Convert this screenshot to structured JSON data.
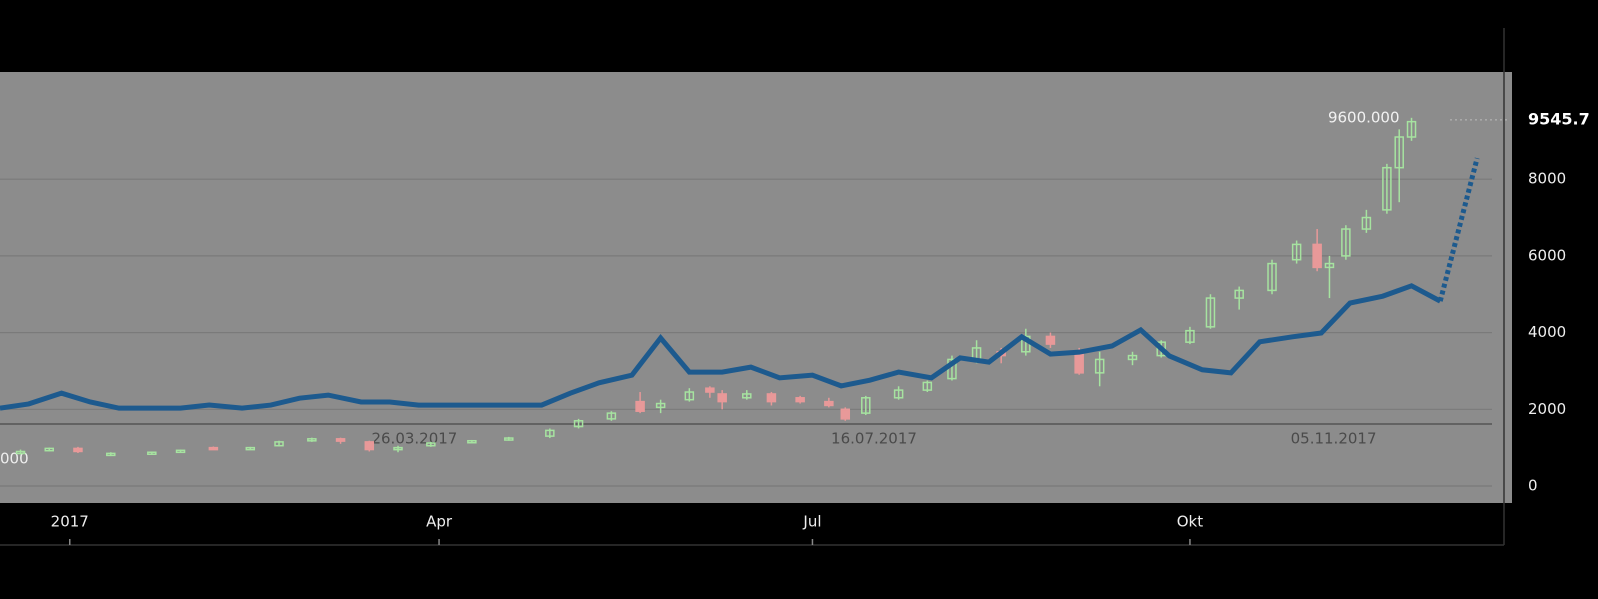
{
  "chart_data": {
    "type": "candlestick",
    "xlim": [
      -17,
      351
    ],
    "xticks": [
      {
        "value": 0,
        "label": "2017"
      },
      {
        "value": 90,
        "label": "Apr"
      },
      {
        "value": 181,
        "label": "Jul"
      },
      {
        "value": 273,
        "label": "Okt"
      }
    ],
    "ylim": [
      -235,
      10795
    ],
    "yticks": [
      0,
      2000,
      4000,
      6000,
      8000
    ],
    "grid": true,
    "candles": {
      "up_color": "#a6e3a0",
      "down_color": "#e89999",
      "x": [
        -12,
        -5,
        2,
        10,
        20,
        27,
        35,
        44,
        51,
        59,
        66,
        73,
        80,
        88,
        98,
        107,
        117,
        124,
        132,
        139,
        144,
        151,
        156,
        159,
        165,
        171,
        178,
        185,
        189,
        194,
        202,
        209,
        215,
        221,
        227,
        233,
        239,
        246,
        251,
        259,
        266,
        273,
        278,
        285,
        293,
        299,
        304,
        307,
        311,
        316,
        321,
        324,
        327
      ],
      "open": [
        850,
        920,
        980,
        800,
        860,
        880,
        1000,
        960,
        1050,
        1180,
        1230,
        1150,
        950,
        1050,
        1150,
        1200,
        1300,
        1550,
        1750,
        2200,
        2050,
        2250,
        2550,
        2400,
        2300,
        2400,
        2300,
        2200,
        2000,
        1900,
        2300,
        2500,
        2800,
        3300,
        3500,
        3500,
        3900,
        3500,
        2950,
        3300,
        3400,
        3750,
        4150,
        4900,
        5100,
        5900,
        6300,
        5700,
        6000,
        6700,
        7200,
        8300,
        9100
      ],
      "close": [
        900,
        980,
        900,
        850,
        880,
        930,
        960,
        1000,
        1150,
        1230,
        1170,
        950,
        1000,
        1120,
        1180,
        1250,
        1450,
        1700,
        1900,
        1950,
        2150,
        2450,
        2450,
        2200,
        2400,
        2200,
        2200,
        2100,
        1750,
        2300,
        2500,
        2700,
        3300,
        3600,
        3400,
        3900,
        3700,
        2950,
        3300,
        3400,
        3750,
        4050,
        4900,
        5100,
        5800,
        6300,
        5700,
        5800,
        6700,
        7000,
        8300,
        9100,
        9500
      ],
      "high": [
        950,
        1000,
        1020,
        880,
        900,
        950,
        1030,
        1020,
        1180,
        1260,
        1260,
        1180,
        1050,
        1150,
        1200,
        1280,
        1500,
        1750,
        1950,
        2450,
        2250,
        2550,
        2600,
        2500,
        2500,
        2450,
        2350,
        2300,
        2050,
        2350,
        2600,
        2750,
        3400,
        3800,
        3600,
        4100,
        4000,
        3600,
        3500,
        3500,
        3800,
        4150,
        5000,
        5200,
        5900,
        6400,
        6700,
        6000,
        6800,
        7200,
        8400,
        9300,
        9600
      ],
      "low": [
        820,
        900,
        860,
        780,
        840,
        860,
        940,
        950,
        1030,
        1150,
        1100,
        900,
        880,
        1020,
        1120,
        1180,
        1250,
        1500,
        1700,
        1900,
        1900,
        2200,
        2300,
        2000,
        2250,
        2100,
        2150,
        2050,
        1700,
        1850,
        2250,
        2450,
        2750,
        3200,
        3200,
        3400,
        3600,
        2900,
        2600,
        3150,
        3350,
        3700,
        4100,
        4600,
        5000,
        5800,
        5600,
        4900,
        5900,
        6600,
        7100,
        7400,
        9000
      ]
    },
    "lines": [
      {
        "color": "#1d5a8e",
        "style": "solid",
        "x": [
          -17,
          -10,
          -2,
          5,
          12,
          20,
          27,
          34,
          42,
          49,
          56,
          63,
          71,
          78,
          85,
          93,
          100,
          107,
          115,
          122,
          129,
          137,
          144,
          151,
          159,
          166,
          173,
          181,
          188,
          195,
          202,
          210,
          217,
          224,
          232,
          239,
          246,
          254,
          261,
          268,
          276,
          283,
          290,
          298,
          305,
          312,
          320,
          327,
          334
        ],
        "values": [
          2030,
          2140,
          2420,
          2190,
          2030,
          2030,
          2030,
          2110,
          2030,
          2110,
          2290,
          2370,
          2190,
          2190,
          2110,
          2110,
          2110,
          2110,
          2110,
          2420,
          2690,
          2890,
          3860,
          2970,
          2970,
          3100,
          2820,
          2890,
          2610,
          2760,
          2970,
          2820,
          3340,
          3230,
          3890,
          3440,
          3490,
          3650,
          4070,
          3390,
          3030,
          2950,
          3760,
          3890,
          3990,
          4770,
          4950,
          5220,
          4820
        ]
      },
      {
        "color": "#1d5a8e",
        "style": "dotted",
        "x": [
          334,
          343
        ],
        "values": [
          4820,
          8550
        ]
      }
    ],
    "last_price": {
      "value": 9545.7,
      "label": "9545.7"
    },
    "annotations": [
      {
        "text": "26.03.2017",
        "x": 84
      },
      {
        "text": "16.07.2017",
        "x": 196
      },
      {
        "text": "05.11.2017",
        "x": 308
      }
    ],
    "high_label": {
      "text": "9600.000",
      "x": 327,
      "y": 9600
    },
    "low_label": {
      "text": "000"
    }
  }
}
